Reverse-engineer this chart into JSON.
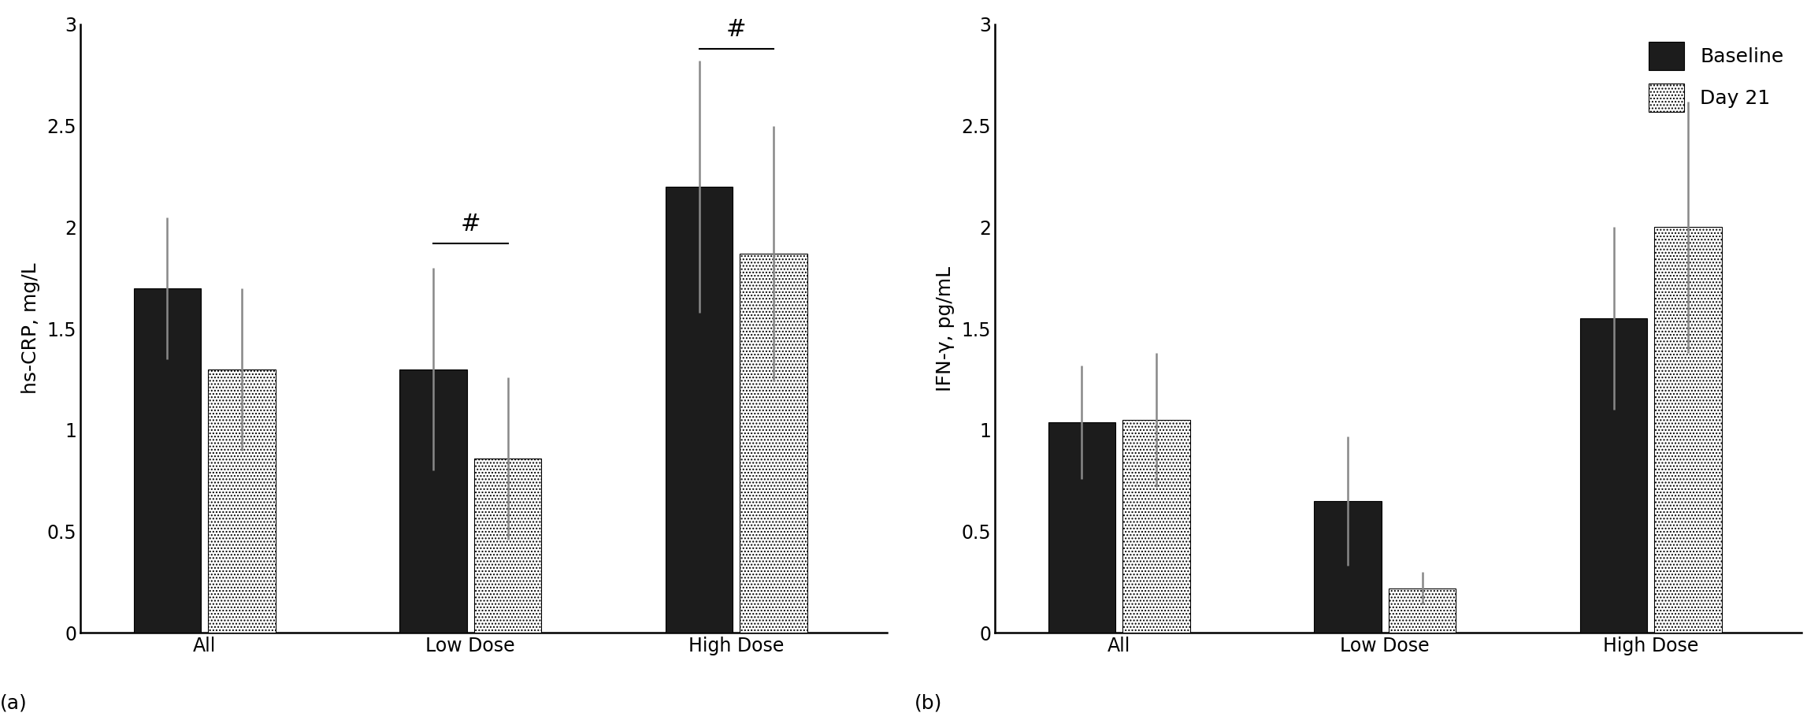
{
  "panel_a": {
    "ylabel": "hs-CRP, mg/L",
    "categories": [
      "All",
      "Low Dose",
      "High Dose"
    ],
    "baseline_values": [
      1.7,
      1.3,
      2.2
    ],
    "day21_values": [
      1.3,
      0.86,
      1.87
    ],
    "baseline_errors": [
      0.35,
      0.5,
      0.62
    ],
    "day21_errors": [
      0.4,
      0.4,
      0.63
    ],
    "ylim": [
      0,
      3.0
    ],
    "yticks": [
      0,
      0.5,
      1.0,
      1.5,
      2.0,
      2.5,
      3.0
    ],
    "ytick_labels": [
      "0",
      "0.5",
      "1",
      "1.5",
      "2",
      "2.5",
      "3"
    ],
    "sig_low_y": 1.92,
    "sig_high_y": 2.88,
    "panel_label": "(a)"
  },
  "panel_b": {
    "ylabel": "IFN-γ, pg/mL",
    "categories": [
      "All",
      "Low Dose",
      "High Dose"
    ],
    "baseline_values": [
      1.04,
      0.65,
      1.55
    ],
    "day21_values": [
      1.05,
      0.22,
      2.0
    ],
    "baseline_errors": [
      0.28,
      0.32,
      0.45
    ],
    "day21_errors": [
      0.33,
      0.08,
      0.62
    ],
    "ylim": [
      0,
      3.0
    ],
    "yticks": [
      0,
      0.5,
      1.0,
      1.5,
      2.0,
      2.5,
      3.0
    ],
    "ytick_labels": [
      "0",
      "0.5",
      "1",
      "1.5",
      "2",
      "2.5",
      "3"
    ],
    "panel_label": "(b)"
  },
  "legend_baseline": "Baseline",
  "legend_day21": "Day 21",
  "baseline_color": "#1c1c1c",
  "day21_facecolor": "#ffffff",
  "error_color": "#888888",
  "bar_width": 0.38,
  "bar_gap": 0.04,
  "group_positions": [
    1.0,
    2.5,
    4.0
  ],
  "xlim": [
    0.3,
    4.85
  ],
  "fontsize_tick": 17,
  "fontsize_ylabel": 18,
  "fontsize_panel": 18,
  "fontsize_sig": 22,
  "fontsize_legend": 18,
  "spine_linewidth": 1.8
}
